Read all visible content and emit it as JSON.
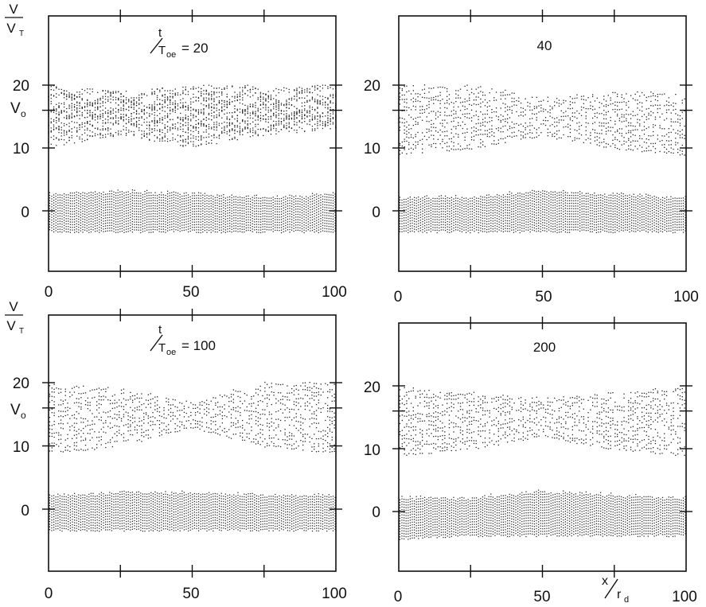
{
  "chart_data": [
    {
      "type": "scatter",
      "panel": "top-left",
      "time_label": {
        "t": "t",
        "T": "T",
        "sub": "oe",
        "value": "= 20"
      },
      "ylabel": {
        "num": "V",
        "den": "V",
        "den_sub": "T"
      },
      "v0_label": {
        "V": "V",
        "sub": "o"
      },
      "xlim": [
        0,
        100
      ],
      "ylim": [
        -10,
        32
      ],
      "x_ticks": [
        "0",
        "50",
        "100"
      ],
      "y_ticks": [
        "20",
        "10",
        "0"
      ],
      "v0": 16,
      "beam": {
        "state": "phase-space vortices",
        "lower": [
          10,
          12,
          10,
          12,
          13
        ],
        "upper": [
          20,
          19,
          20,
          20,
          20
        ]
      },
      "bulk": {
        "lower": [
          -3,
          -3,
          -3,
          -3,
          -3
        ],
        "upper": [
          2.5,
          3,
          2.5,
          2,
          2.5
        ]
      }
    },
    {
      "type": "scatter",
      "panel": "top-right",
      "time_label": {
        "value": "40"
      },
      "xlim": [
        0,
        100
      ],
      "ylim": [
        -10,
        32
      ],
      "x_ticks": [
        "0",
        "50",
        "100"
      ],
      "y_ticks": [
        "20",
        "10",
        "0"
      ],
      "v0": 16,
      "beam": {
        "state": "mixed",
        "lower": [
          9,
          10,
          12,
          10,
          9
        ],
        "upper": [
          20,
          20,
          18,
          19,
          19
        ]
      },
      "bulk": {
        "lower": [
          -3,
          -3,
          -3,
          -3,
          -3
        ],
        "upper": [
          2,
          2,
          3,
          2.5,
          2
        ]
      }
    },
    {
      "type": "scatter",
      "panel": "bottom-left",
      "time_label": {
        "t": "t",
        "T": "T",
        "sub": "oe",
        "value": "= 100"
      },
      "ylabel": {
        "num": "V",
        "den": "V",
        "den_sub": "T"
      },
      "v0_label": {
        "V": "V",
        "sub": "o"
      },
      "xlim": [
        0,
        100
      ],
      "ylim": [
        -10,
        32
      ],
      "x_ticks": [
        "0",
        "50",
        "100"
      ],
      "y_ticks": [
        "20",
        "10",
        "0"
      ],
      "v0": 16,
      "beam": {
        "state": "plateau",
        "lower": [
          9,
          10,
          13,
          10,
          9
        ],
        "upper": [
          20,
          19,
          17,
          20,
          20
        ]
      },
      "bulk": {
        "lower": [
          -3,
          -3,
          -3,
          -3,
          -3
        ],
        "upper": [
          2,
          2.5,
          2.5,
          2,
          2
        ]
      }
    },
    {
      "type": "scatter",
      "panel": "bottom-right",
      "time_label": {
        "value": "200"
      },
      "xlabel": {
        "x": "x",
        "r": "r",
        "sub": "d"
      },
      "xlim": [
        0,
        100
      ],
      "ylim": [
        -10,
        32
      ],
      "x_ticks": [
        "0",
        "50",
        "100"
      ],
      "y_ticks": [
        "20",
        "10",
        "0"
      ],
      "v0": 16,
      "beam": {
        "state": "plateau",
        "lower": [
          9,
          10,
          12,
          10,
          9
        ],
        "upper": [
          20,
          19,
          18,
          19,
          20
        ]
      },
      "bulk": {
        "lower": [
          -4,
          -3.5,
          -3.5,
          -3.5,
          -3.5
        ],
        "upper": [
          2,
          2,
          3,
          2.5,
          2
        ]
      }
    }
  ]
}
